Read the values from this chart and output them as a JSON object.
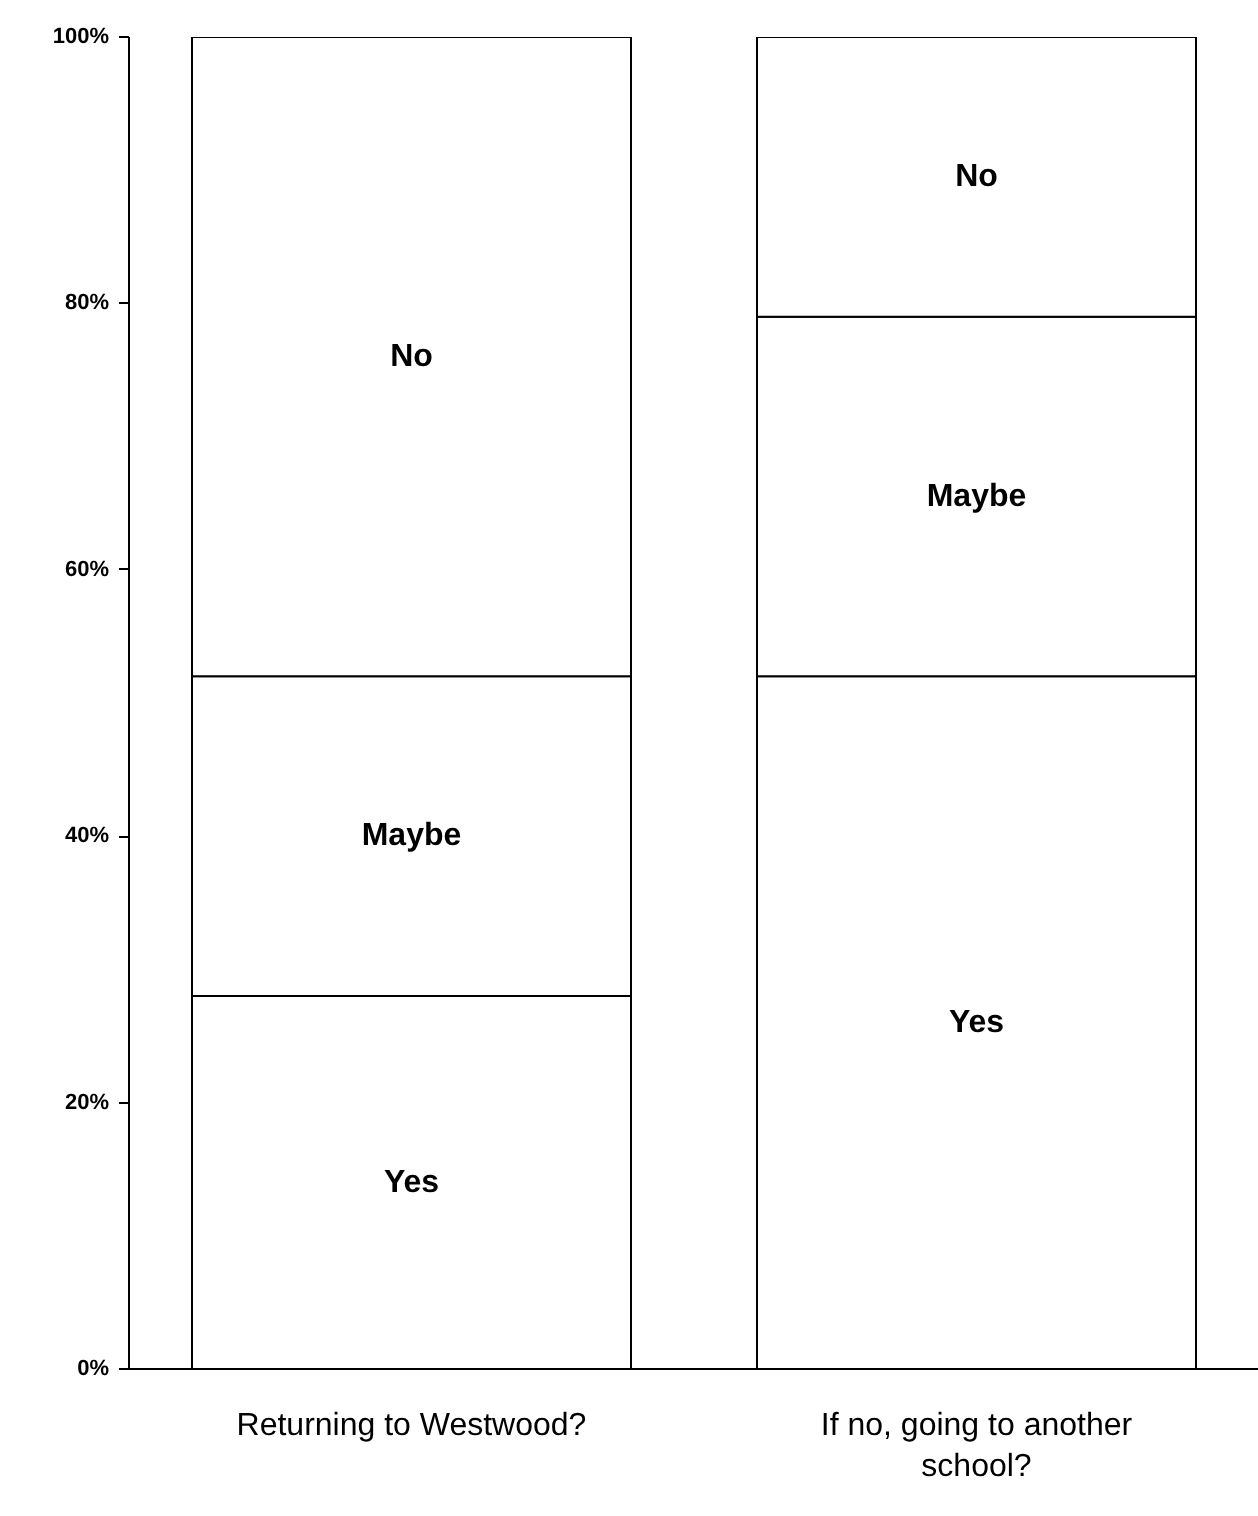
{
  "chart_data": {
    "type": "bar",
    "stacked": true,
    "categories": [
      "Returning to Westwood?",
      "If no, going to another school?"
    ],
    "series": [
      {
        "name": "Yes",
        "color": "#ffffff",
        "values": [
          28,
          52
        ]
      },
      {
        "name": "Maybe",
        "color": "#ffffff",
        "values": [
          24,
          27
        ]
      },
      {
        "name": "No",
        "color": "#ffffff",
        "values": [
          48,
          21
        ]
      }
    ],
    "ylim": [
      0,
      100
    ],
    "yticks": [
      {
        "value": 0,
        "label": "0%"
      },
      {
        "value": 20,
        "label": "20%"
      },
      {
        "value": 40,
        "label": "40%"
      },
      {
        "value": 60,
        "label": "60%"
      },
      {
        "value": 80,
        "label": "80%"
      },
      {
        "value": 100,
        "label": "100%"
      }
    ],
    "grid": false
  }
}
